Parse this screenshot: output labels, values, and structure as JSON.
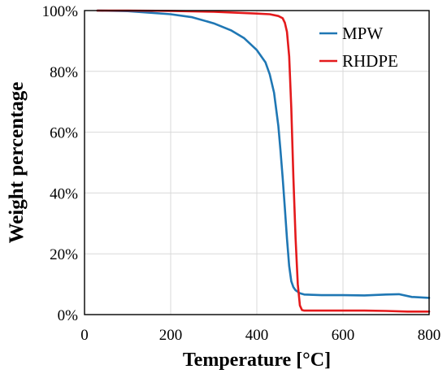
{
  "chart_data": {
    "type": "line",
    "xlabel": "Temperature [°C]",
    "ylabel": "Weight percentage",
    "xlim": [
      0,
      800
    ],
    "ylim": [
      0,
      100
    ],
    "x_ticks": [
      "0",
      "200",
      "400",
      "600",
      "800"
    ],
    "y_ticks": [
      "0%",
      "20%",
      "40%",
      "60%",
      "80%",
      "100%"
    ],
    "grid": "vertical-and-horizontal",
    "legend_position": "top-right",
    "series": [
      {
        "name": "MPW",
        "color": "#1f77b4",
        "x": [
          30,
          100,
          150,
          200,
          250,
          300,
          340,
          370,
          400,
          420,
          430,
          440,
          450,
          455,
          460,
          465,
          470,
          475,
          480,
          485,
          490,
          495,
          500,
          510,
          550,
          600,
          650,
          700,
          730,
          760,
          800
        ],
        "y": [
          100,
          99.8,
          99.3,
          98.8,
          97.8,
          95.8,
          93.5,
          91,
          87,
          83,
          79,
          73,
          62,
          54,
          45,
          35,
          25,
          16,
          11,
          9,
          8,
          7.5,
          7,
          6.6,
          6.4,
          6.4,
          6.3,
          6.6,
          6.7,
          5.8,
          5.5
        ]
      },
      {
        "name": "RHDPE",
        "color": "#e41a1c",
        "x": [
          30,
          100,
          200,
          300,
          350,
          400,
          430,
          450,
          460,
          465,
          470,
          475,
          480,
          485,
          490,
          495,
          500,
          505,
          510,
          550,
          600,
          650,
          700,
          750,
          800
        ],
        "y": [
          100,
          100,
          99.9,
          99.6,
          99.3,
          99,
          98.8,
          98.2,
          97.5,
          96,
          93,
          85,
          68,
          45,
          25,
          10,
          3,
          1.5,
          1.3,
          1.3,
          1.3,
          1.3,
          1.2,
          1.0,
          1.0
        ]
      }
    ]
  }
}
